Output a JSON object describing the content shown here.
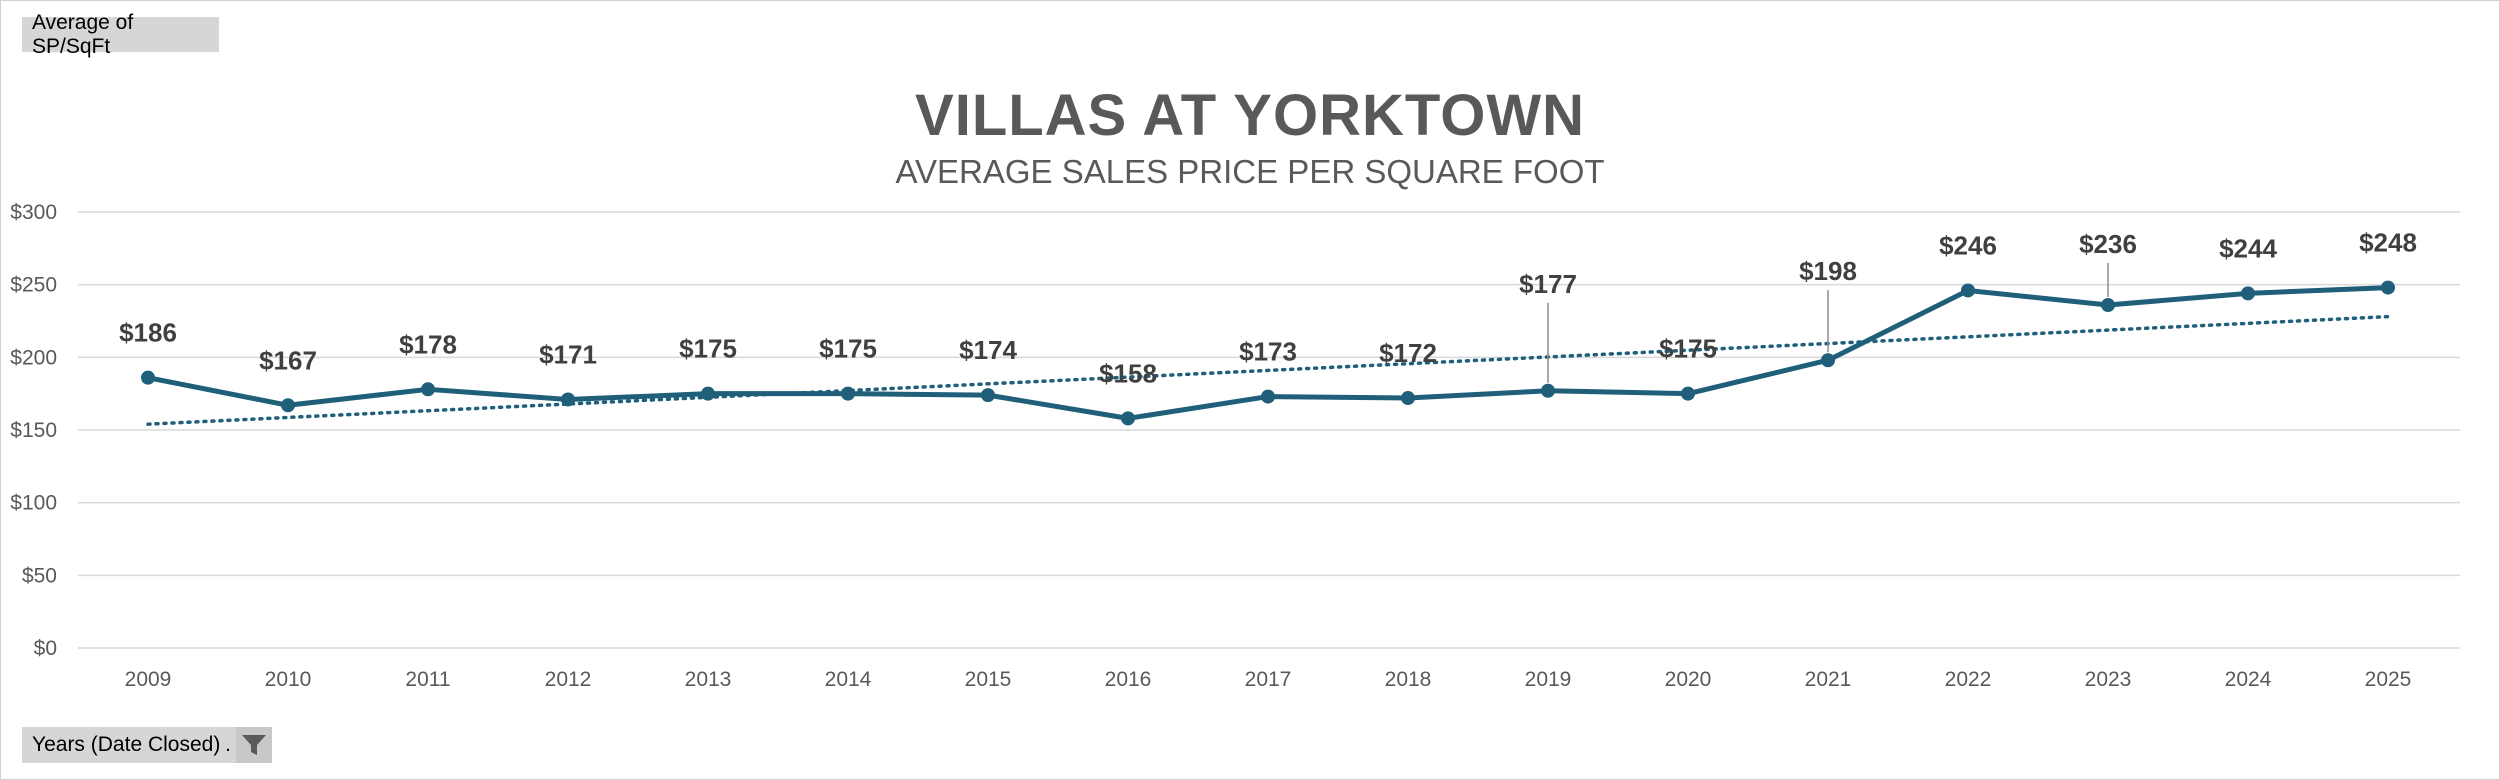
{
  "field_buttons": {
    "value_field": "Average of SP/SqFt",
    "axis_field": "Years (Date Closed)",
    "axis_field_separator": ".",
    "filter_icon": "funnel-icon"
  },
  "colors": {
    "line": "#1f5f7a",
    "trend": "#1f5f7a",
    "grid": "#d9d9d9",
    "field_button_bg": "#d6d6d6"
  },
  "chart_data": {
    "type": "line",
    "title": "VILLAS AT YORKTOWN",
    "subtitle": "AVERAGE SALES PRICE PER SQUARE FOOT",
    "xlabel": "",
    "ylabel": "",
    "categories": [
      "2009",
      "2010",
      "2011",
      "2012",
      "2013",
      "2014",
      "2015",
      "2016",
      "2017",
      "2018",
      "2019",
      "2020",
      "2021",
      "2022",
      "2023",
      "2024",
      "2025"
    ],
    "series": [
      {
        "values": [
          186,
          167,
          178,
          171,
          175,
          175,
          174,
          158,
          173,
          172,
          177,
          175,
          198,
          246,
          236,
          244,
          248
        ],
        "data_labels": [
          "$186",
          "$167",
          "$178",
          "$171",
          "$175",
          "$175",
          "$174",
          "$158",
          "$173",
          "$172",
          "$177",
          "$175",
          "$198",
          "$246",
          "$236",
          "$244",
          "$248"
        ]
      }
    ],
    "trendline": {
      "type": "linear",
      "style": "dotted",
      "start": 154,
      "end": 228
    },
    "ylim": [
      0,
      300
    ],
    "yticks": [
      0,
      50,
      100,
      150,
      200,
      250,
      300
    ],
    "ytick_labels": [
      "$0",
      "$50",
      "$100",
      "$150",
      "$200",
      "$250",
      "$300"
    ],
    "grid": true,
    "legend": "none"
  }
}
